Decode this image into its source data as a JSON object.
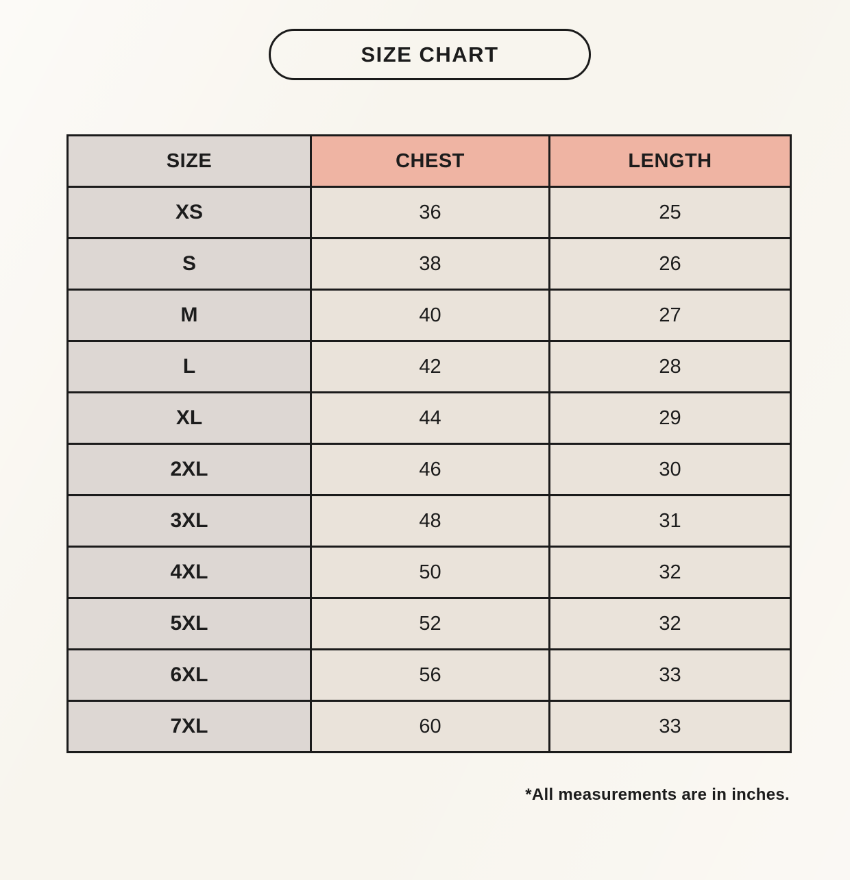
{
  "page": {
    "title": "SIZE CHART",
    "footnote": "*All measurements are in inches."
  },
  "chart_data": {
    "type": "table",
    "title": "SIZE CHART",
    "columns": [
      "SIZE",
      "CHEST",
      "LENGTH"
    ],
    "units": "inches",
    "rows": [
      {
        "size": "XS",
        "chest": "36",
        "length": "25"
      },
      {
        "size": "S",
        "chest": "38",
        "length": "26"
      },
      {
        "size": "M",
        "chest": "40",
        "length": "27"
      },
      {
        "size": "L",
        "chest": "42",
        "length": "28"
      },
      {
        "size": "XL",
        "chest": "44",
        "length": "29"
      },
      {
        "size": "2XL",
        "chest": "46",
        "length": "30"
      },
      {
        "size": "3XL",
        "chest": "48",
        "length": "31"
      },
      {
        "size": "4XL",
        "chest": "50",
        "length": "32"
      },
      {
        "size": "5XL",
        "chest": "52",
        "length": "32"
      },
      {
        "size": "6XL",
        "chest": "56",
        "length": "33"
      },
      {
        "size": "7XL",
        "chest": "60",
        "length": "33"
      }
    ]
  },
  "colors": {
    "page_bg": "#f8f5ee",
    "header_measure_bg": "#efb4a3",
    "size_col_bg": "#ddd7d3",
    "data_cell_bg": "#eae3da",
    "border": "#1b1b1b",
    "text": "#1c1c1c"
  }
}
